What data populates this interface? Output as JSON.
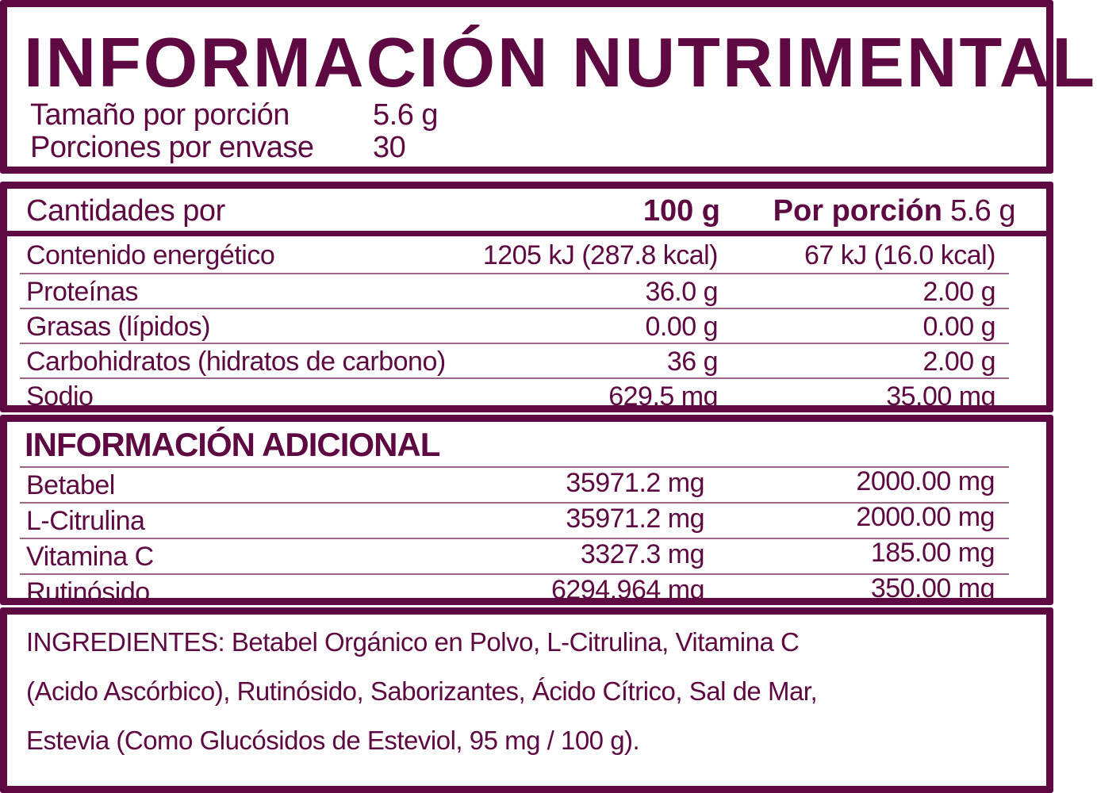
{
  "colors": {
    "maroon": "#5E0941",
    "background": "#FFFFFF"
  },
  "header": {
    "title": "INFORMACIÓN NUTRIMENTAL",
    "serving_rows": [
      {
        "label": "Tamaño por porción",
        "value": "5.6 g"
      },
      {
        "label": "Porciones por envase",
        "value": "30"
      }
    ]
  },
  "nutrition_table": {
    "header": {
      "label": "Cantidades por",
      "col_100g": "100 g",
      "col_portion_label": "Por porción",
      "col_portion_value": "5.6 g"
    },
    "rows": [
      {
        "label": "Contenido energético",
        "per_100g": "1205 kJ (287.8 kcal)",
        "per_portion": "67 kJ (16.0 kcal)"
      },
      {
        "label": "Proteínas",
        "per_100g": "36.0 g",
        "per_portion": "2.00 g"
      },
      {
        "label": "Grasas (lípidos)",
        "per_100g": "0.00 g",
        "per_portion": "0.00 g"
      },
      {
        "label": "Carbohidratos (hidratos de carbono)",
        "per_100g": "36 g",
        "per_portion": "2.00 g"
      },
      {
        "label": "Sodio",
        "per_100g": "629.5 mg",
        "per_portion": "35.00 mg"
      }
    ]
  },
  "additional_info": {
    "title": "INFORMACIÓN ADICIONAL",
    "rows": [
      {
        "label": "Betabel",
        "per_100g": "35971.2 mg",
        "per_portion": "2000.00 mg"
      },
      {
        "label": "L-Citrulina",
        "per_100g": "35971.2 mg",
        "per_portion": "2000.00 mg"
      },
      {
        "label": "Vitamina C",
        "per_100g": "3327.3 mg",
        "per_portion": "185.00 mg"
      },
      {
        "label": "Rutinósido",
        "per_100g": "6294.964 mg",
        "per_portion": "350.00 mg"
      }
    ]
  },
  "ingredients": {
    "lines": [
      "INGREDIENTES: Betabel Orgánico en Polvo, L-Citrulina, Vitamina C",
      "(Acido Ascórbico), Rutinósido, Saborizantes, Ácido Cítrico, Sal de Mar,",
      "Estevia (Como Glucósidos de Esteviol, 95 mg / 100 g)."
    ]
  }
}
